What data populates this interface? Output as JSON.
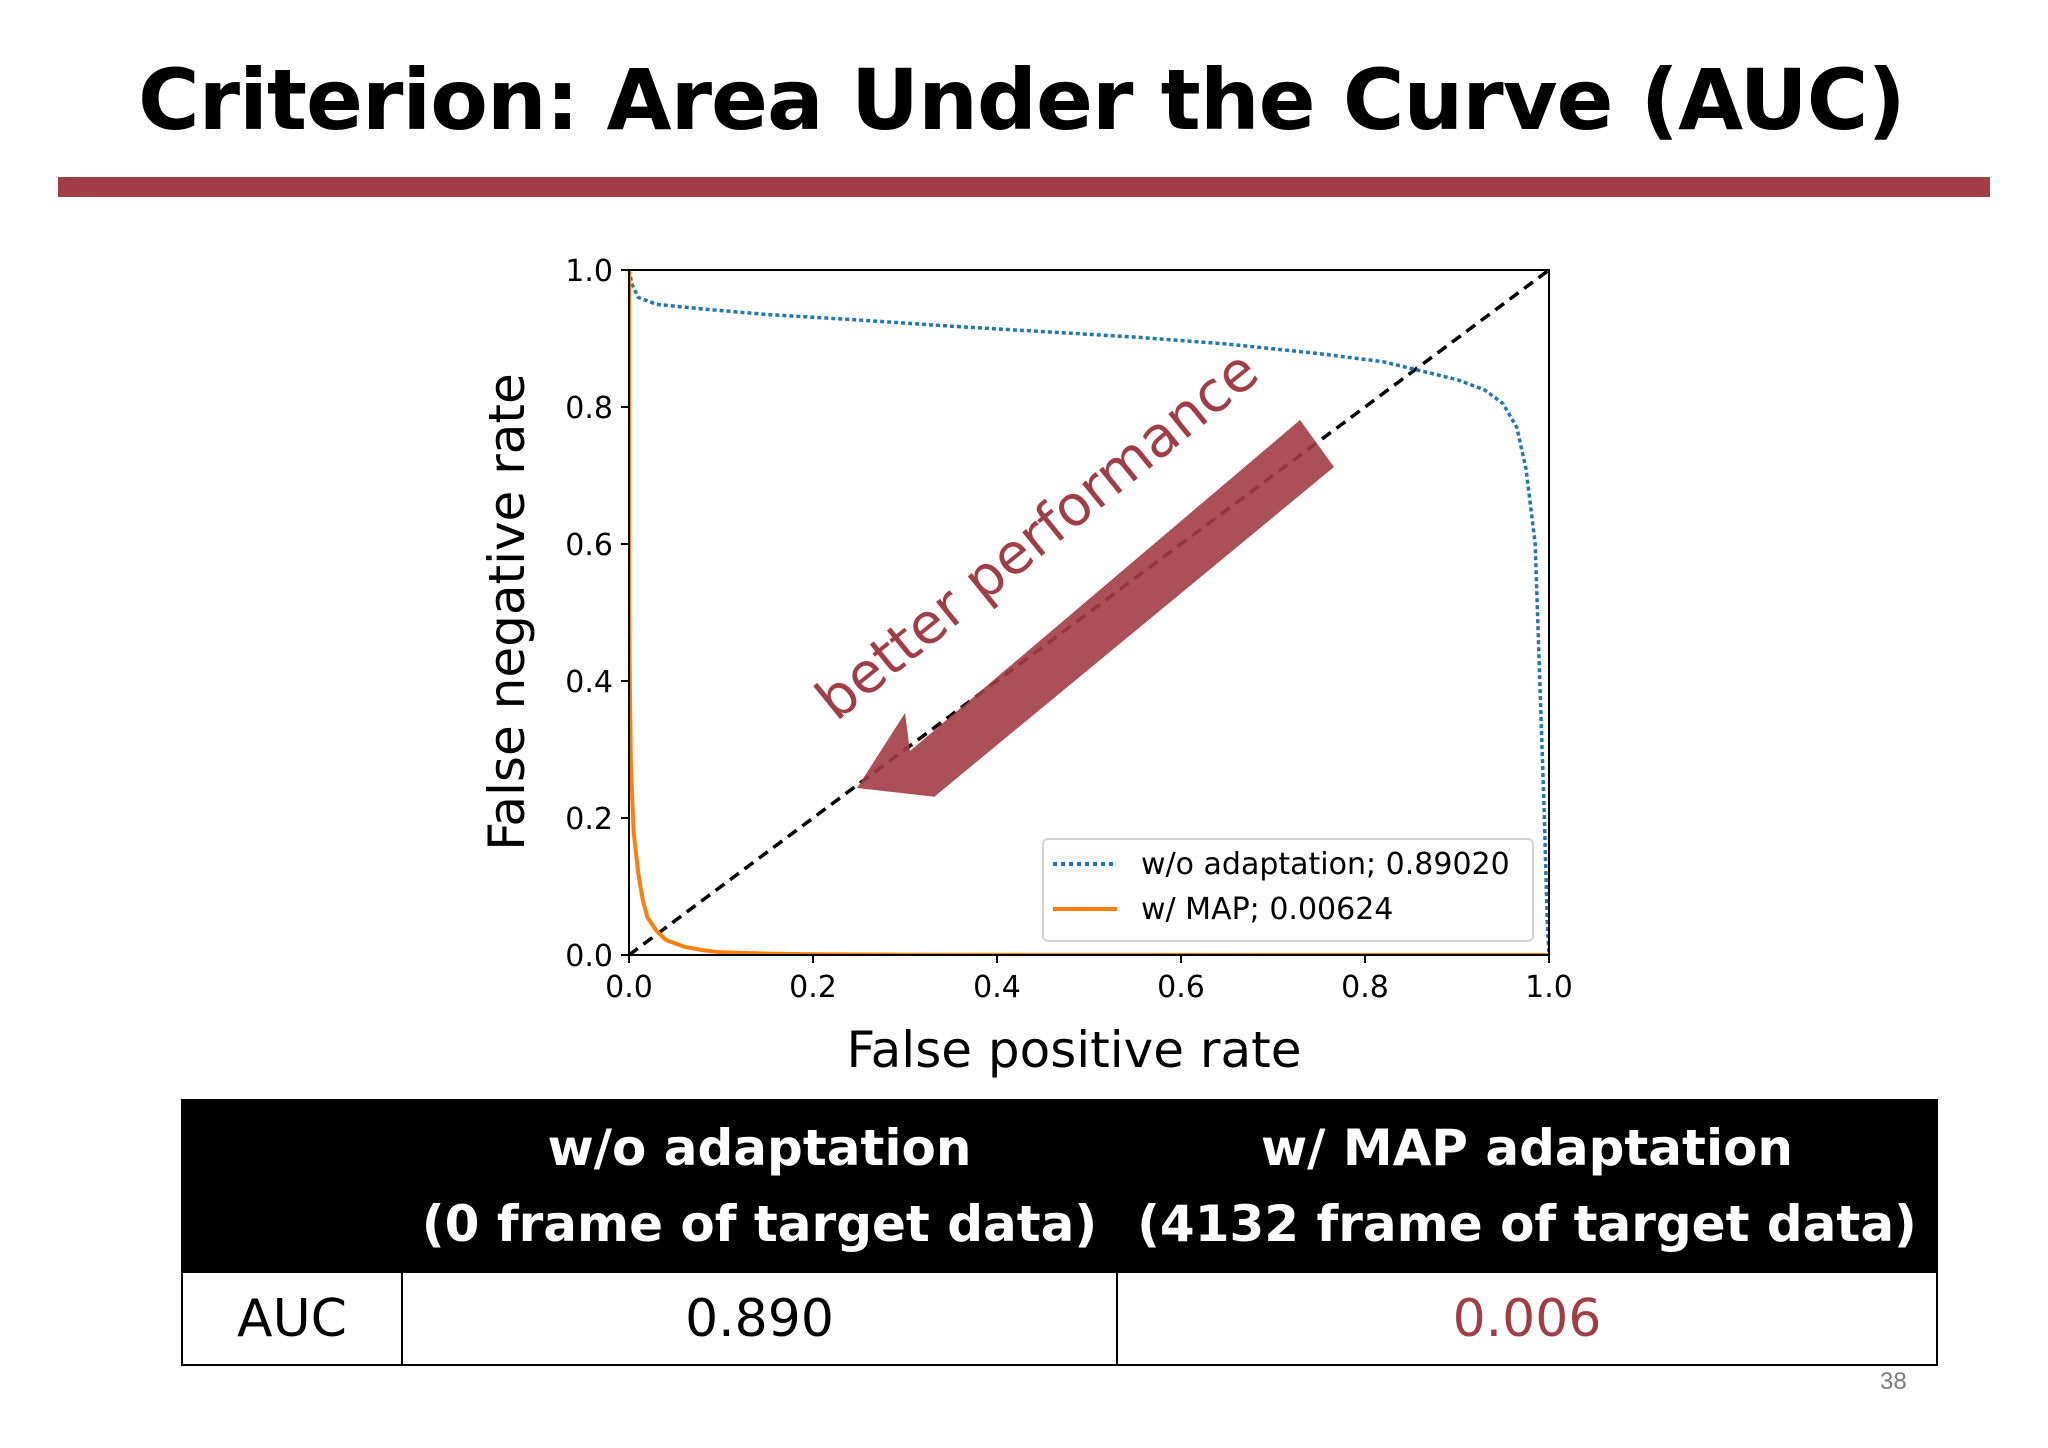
{
  "slide": {
    "title": "Criterion: Area Under the Curve (AUC)",
    "page_number": "38",
    "accent_color": "#a13d44"
  },
  "chart_data": {
    "type": "line",
    "xlabel": "False positive rate",
    "ylabel": "False negative rate",
    "xlim": [
      0,
      1
    ],
    "ylim": [
      0,
      1
    ],
    "xticks": [
      "0.0",
      "0.2",
      "0.4",
      "0.6",
      "0.8",
      "1.0"
    ],
    "yticks": [
      "0.0",
      "0.2",
      "0.4",
      "0.6",
      "0.8",
      "1.0"
    ],
    "grid": false,
    "legend_position": "bottom-right",
    "annotation": "better performance",
    "series": [
      {
        "name": "w/o adaptation; 0.89020",
        "style": "dotted",
        "color": "#1f77b4",
        "x": [
          0.0,
          0.003,
          0.01,
          0.03,
          0.08,
          0.15,
          0.25,
          0.35,
          0.45,
          0.55,
          0.65,
          0.75,
          0.82,
          0.86,
          0.9,
          0.93,
          0.95,
          0.965,
          0.975,
          0.985,
          0.99,
          0.995,
          0.998,
          1.0
        ],
        "y": [
          1.0,
          0.98,
          0.96,
          0.95,
          0.943,
          0.935,
          0.927,
          0.918,
          0.91,
          0.902,
          0.892,
          0.878,
          0.866,
          0.853,
          0.84,
          0.825,
          0.805,
          0.77,
          0.71,
          0.6,
          0.4,
          0.2,
          0.05,
          0.0
        ]
      },
      {
        "name": "w/ MAP; 0.00624",
        "style": "solid",
        "color": "#ff7f0e",
        "x": [
          0.0,
          0.0,
          0.002,
          0.005,
          0.01,
          0.015,
          0.02,
          0.03,
          0.04,
          0.06,
          0.08,
          0.1,
          0.15,
          0.2,
          0.3,
          0.5,
          0.7,
          1.0
        ],
        "y": [
          1.0,
          0.5,
          0.28,
          0.18,
          0.12,
          0.08,
          0.055,
          0.035,
          0.022,
          0.012,
          0.007,
          0.004,
          0.002,
          0.001,
          0.0005,
          0.0002,
          0.0,
          0.0
        ]
      },
      {
        "name": "",
        "style": "dashed",
        "color": "#000000",
        "x": [
          0,
          1
        ],
        "y": [
          0,
          1
        ]
      }
    ]
  },
  "table": {
    "headers": [
      "",
      {
        "line1": "w/o adaptation",
        "line2": "(0 frame of target data)"
      },
      {
        "line1": "w/ MAP adaptation",
        "line2": "(4132 frame of target data)"
      }
    ],
    "rows": [
      [
        "AUC",
        "0.890",
        "0.006"
      ]
    ]
  }
}
